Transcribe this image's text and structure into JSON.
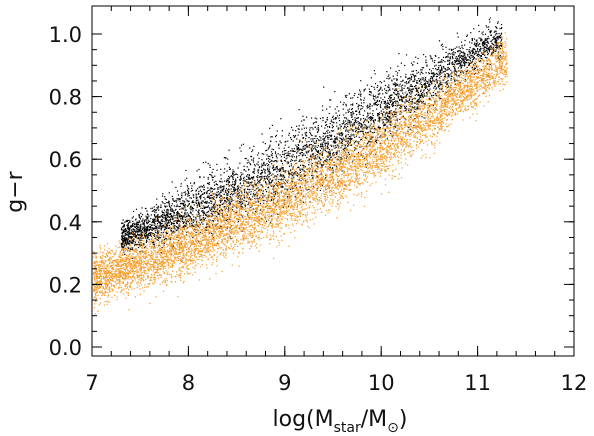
{
  "chart_data": {
    "type": "scatter",
    "xlabel_main": "log(M",
    "xlabel_sub1": "star",
    "xlabel_mid": "/M",
    "xlabel_sub2": "⊙",
    "xlabel_end": ")",
    "ylabel": "g−r",
    "xlim": [
      7,
      12
    ],
    "ylim": [
      -0.05,
      1.08
    ],
    "xticks": [
      7,
      8,
      9,
      10,
      11,
      12
    ],
    "yticks": [
      0.0,
      0.2,
      0.4,
      0.6,
      0.8,
      1.0
    ],
    "xtick_labels": [
      "7",
      "8",
      "9",
      "10",
      "11",
      "12"
    ],
    "ytick_labels": [
      "0.0",
      "0.2",
      "0.4",
      "0.6",
      "0.8",
      "1.0"
    ],
    "grid": false,
    "series": [
      {
        "color": "#000000",
        "trend": [
          [
            7.3,
            0.35
          ],
          [
            7.5,
            0.37
          ],
          [
            8.0,
            0.44
          ],
          [
            8.5,
            0.5
          ],
          [
            9.0,
            0.58
          ],
          [
            9.5,
            0.66
          ],
          [
            10.0,
            0.76
          ],
          [
            10.5,
            0.85
          ],
          [
            11.0,
            0.95
          ],
          [
            11.25,
            0.99
          ]
        ],
        "scatter_y": [
          [
            7.3,
            0.03
          ],
          [
            8.0,
            0.06
          ],
          [
            9.0,
            0.08
          ],
          [
            10.0,
            0.07
          ],
          [
            11.0,
            0.04
          ]
        ],
        "n_points": 4500
      },
      {
        "color": "#f5a030",
        "trend": [
          [
            7.0,
            0.22
          ],
          [
            7.5,
            0.27
          ],
          [
            8.0,
            0.33
          ],
          [
            8.5,
            0.4
          ],
          [
            9.0,
            0.47
          ],
          [
            9.5,
            0.55
          ],
          [
            10.0,
            0.64
          ],
          [
            10.5,
            0.74
          ],
          [
            11.0,
            0.85
          ],
          [
            11.3,
            0.92
          ]
        ],
        "scatter_y": [
          [
            7.0,
            0.05
          ],
          [
            8.0,
            0.06
          ],
          [
            9.0,
            0.07
          ],
          [
            10.0,
            0.07
          ],
          [
            11.0,
            0.05
          ]
        ],
        "n_points": 7000
      }
    ]
  }
}
